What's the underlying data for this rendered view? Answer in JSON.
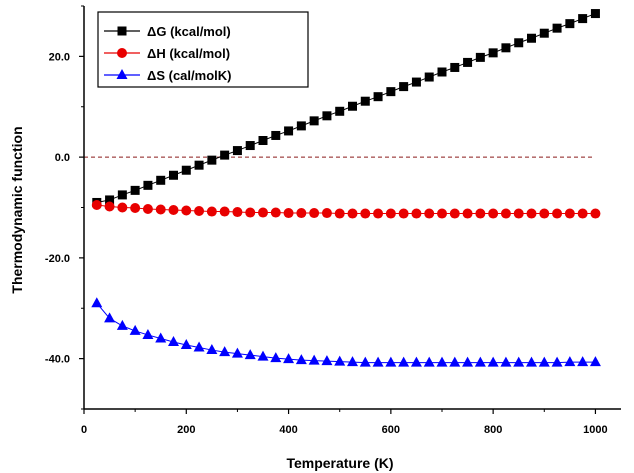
{
  "chart_data": {
    "type": "line",
    "xlabel": "Temperature (K)",
    "ylabel": "Thermodynamic function",
    "xlim": [
      0,
      1050
    ],
    "ylim": [
      -50,
      30
    ],
    "x_ticks": [
      {
        "value": 0,
        "label": "0"
      },
      {
        "value": 200,
        "label": "200"
      },
      {
        "value": 400,
        "label": "400"
      },
      {
        "value": 600,
        "label": "600"
      },
      {
        "value": 800,
        "label": "800"
      },
      {
        "value": 1000,
        "label": "1000"
      }
    ],
    "y_ticks": [
      {
        "value": -40,
        "label": "-40.0"
      },
      {
        "value": -20,
        "label": "-20.0"
      },
      {
        "value": 0,
        "label": "0.0"
      },
      {
        "value": 20,
        "label": "20.0"
      }
    ],
    "reference_line": {
      "y": 0,
      "style": "dashed",
      "color": "#8b1a1a"
    },
    "legend_position": "top-left",
    "x": [
      25,
      50,
      75,
      100,
      125,
      150,
      175,
      200,
      225,
      250,
      275,
      300,
      325,
      350,
      375,
      400,
      425,
      450,
      475,
      500,
      525,
      550,
      575,
      600,
      625,
      650,
      675,
      700,
      725,
      750,
      775,
      800,
      825,
      850,
      875,
      900,
      925,
      950,
      975,
      1000
    ],
    "series": [
      {
        "name": "ΔG (kcal/mol)",
        "color": "#000000",
        "marker": "square",
        "values": [
          -9.0,
          -8.5,
          -7.5,
          -6.6,
          -5.6,
          -4.6,
          -3.6,
          -2.6,
          -1.6,
          -0.6,
          0.4,
          1.3,
          2.3,
          3.3,
          4.3,
          5.2,
          6.2,
          7.2,
          8.2,
          9.1,
          10.1,
          11.1,
          12.0,
          13.0,
          14.0,
          14.9,
          15.9,
          16.9,
          17.8,
          18.8,
          19.8,
          20.7,
          21.7,
          22.7,
          23.6,
          24.6,
          25.6,
          26.5,
          27.5,
          28.5
        ]
      },
      {
        "name": "ΔH (kcal/mol)",
        "color": "#e80000",
        "marker": "circle",
        "values": [
          -9.5,
          -9.8,
          -10.0,
          -10.1,
          -10.3,
          -10.4,
          -10.5,
          -10.6,
          -10.7,
          -10.8,
          -10.8,
          -10.9,
          -11.0,
          -11.0,
          -11.0,
          -11.1,
          -11.1,
          -11.1,
          -11.1,
          -11.2,
          -11.2,
          -11.2,
          -11.2,
          -11.2,
          -11.2,
          -11.2,
          -11.2,
          -11.2,
          -11.2,
          -11.2,
          -11.2,
          -11.2,
          -11.2,
          -11.2,
          -11.2,
          -11.2,
          -11.2,
          -11.2,
          -11.2,
          -11.2
        ]
      },
      {
        "name": "ΔS (cal/molK)",
        "color": "#0000ff",
        "marker": "triangle",
        "values": [
          -29.0,
          -32.0,
          -33.5,
          -34.5,
          -35.3,
          -36.0,
          -36.7,
          -37.3,
          -37.8,
          -38.3,
          -38.7,
          -39.0,
          -39.3,
          -39.6,
          -39.9,
          -40.1,
          -40.3,
          -40.4,
          -40.5,
          -40.6,
          -40.7,
          -40.8,
          -40.8,
          -40.8,
          -40.8,
          -40.8,
          -40.8,
          -40.8,
          -40.8,
          -40.8,
          -40.8,
          -40.8,
          -40.8,
          -40.8,
          -40.8,
          -40.8,
          -40.8,
          -40.7,
          -40.7,
          -40.7
        ]
      }
    ]
  }
}
